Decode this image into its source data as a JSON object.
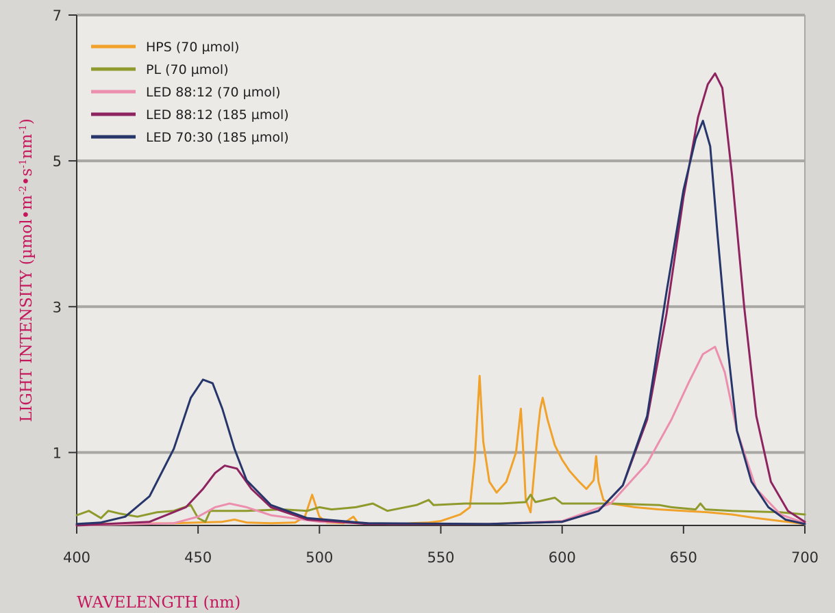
{
  "chart_data": {
    "type": "line",
    "xlabel": "WAVELENGTH (nm)",
    "ylabel_parts": [
      "LIGHT INTENSITY (µmol•m",
      "-2",
      "•s",
      "-1",
      "nm",
      "-1",
      ")"
    ],
    "xlim": [
      400,
      700
    ],
    "ylim": [
      0,
      7
    ],
    "xticks": [
      400,
      450,
      500,
      550,
      600,
      650,
      700
    ],
    "yticks": [
      1,
      3,
      5,
      7
    ],
    "grid": true,
    "legend_position": "top-left",
    "series": [
      {
        "name": "HPS (70 µmol)",
        "color": "#f0a22a",
        "points": [
          [
            400,
            0.02
          ],
          [
            440,
            0.03
          ],
          [
            460,
            0.05
          ],
          [
            465,
            0.08
          ],
          [
            470,
            0.04
          ],
          [
            480,
            0.03
          ],
          [
            490,
            0.04
          ],
          [
            494,
            0.12
          ],
          [
            497,
            0.42
          ],
          [
            500,
            0.12
          ],
          [
            503,
            0.04
          ],
          [
            510,
            0.03
          ],
          [
            514,
            0.12
          ],
          [
            516,
            0.03
          ],
          [
            530,
            0.02
          ],
          [
            545,
            0.04
          ],
          [
            550,
            0.06
          ],
          [
            558,
            0.15
          ],
          [
            562,
            0.25
          ],
          [
            564,
            0.9
          ],
          [
            566,
            2.05
          ],
          [
            567.5,
            1.15
          ],
          [
            570,
            0.6
          ],
          [
            573,
            0.45
          ],
          [
            577,
            0.6
          ],
          [
            581,
            1.0
          ],
          [
            583,
            1.6
          ],
          [
            584,
            1.0
          ],
          [
            585,
            0.35
          ],
          [
            587,
            0.18
          ],
          [
            588,
            0.55
          ],
          [
            590,
            1.3
          ],
          [
            591,
            1.6
          ],
          [
            592,
            1.75
          ],
          [
            594,
            1.45
          ],
          [
            597,
            1.1
          ],
          [
            600,
            0.9
          ],
          [
            603,
            0.75
          ],
          [
            607,
            0.6
          ],
          [
            610,
            0.5
          ],
          [
            613,
            0.62
          ],
          [
            614,
            0.95
          ],
          [
            615,
            0.6
          ],
          [
            617,
            0.35
          ],
          [
            620,
            0.3
          ],
          [
            630,
            0.25
          ],
          [
            640,
            0.22
          ],
          [
            650,
            0.2
          ],
          [
            660,
            0.18
          ],
          [
            670,
            0.15
          ],
          [
            680,
            0.1
          ],
          [
            690,
            0.06
          ],
          [
            700,
            0.02
          ]
        ]
      },
      {
        "name": "PL (70 µmol)",
        "color": "#8f9a2d",
        "points": [
          [
            400,
            0.14
          ],
          [
            405,
            0.2
          ],
          [
            410,
            0.1
          ],
          [
            413,
            0.2
          ],
          [
            418,
            0.16
          ],
          [
            425,
            0.12
          ],
          [
            433,
            0.18
          ],
          [
            440,
            0.2
          ],
          [
            447,
            0.28
          ],
          [
            450,
            0.1
          ],
          [
            453,
            0.05
          ],
          [
            455,
            0.2
          ],
          [
            470,
            0.2
          ],
          [
            485,
            0.22
          ],
          [
            495,
            0.2
          ],
          [
            500,
            0.25
          ],
          [
            505,
            0.22
          ],
          [
            515,
            0.25
          ],
          [
            522,
            0.3
          ],
          [
            528,
            0.2
          ],
          [
            540,
            0.28
          ],
          [
            545,
            0.35
          ],
          [
            547,
            0.28
          ],
          [
            560,
            0.3
          ],
          [
            575,
            0.3
          ],
          [
            585,
            0.32
          ],
          [
            587,
            0.42
          ],
          [
            589,
            0.32
          ],
          [
            597,
            0.38
          ],
          [
            600,
            0.3
          ],
          [
            620,
            0.3
          ],
          [
            640,
            0.28
          ],
          [
            645,
            0.25
          ],
          [
            655,
            0.22
          ],
          [
            657,
            0.3
          ],
          [
            659,
            0.22
          ],
          [
            670,
            0.2
          ],
          [
            690,
            0.18
          ],
          [
            700,
            0.15
          ]
        ]
      },
      {
        "name": "LED 88:12 (70 µmol)",
        "color": "#ec8fae",
        "points": [
          [
            400,
            0.0
          ],
          [
            440,
            0.03
          ],
          [
            450,
            0.12
          ],
          [
            457,
            0.25
          ],
          [
            463,
            0.3
          ],
          [
            470,
            0.25
          ],
          [
            480,
            0.14
          ],
          [
            500,
            0.05
          ],
          [
            530,
            0.02
          ],
          [
            570,
            0.02
          ],
          [
            600,
            0.06
          ],
          [
            620,
            0.3
          ],
          [
            635,
            0.85
          ],
          [
            645,
            1.45
          ],
          [
            652,
            1.95
          ],
          [
            658,
            2.35
          ],
          [
            663,
            2.45
          ],
          [
            667,
            2.1
          ],
          [
            672,
            1.3
          ],
          [
            680,
            0.5
          ],
          [
            690,
            0.15
          ],
          [
            700,
            0.03
          ]
        ]
      },
      {
        "name": "LED 88:12 (185 µmol)",
        "color": "#8d2460",
        "points": [
          [
            400,
            0.0
          ],
          [
            430,
            0.05
          ],
          [
            445,
            0.25
          ],
          [
            452,
            0.5
          ],
          [
            457,
            0.72
          ],
          [
            461,
            0.82
          ],
          [
            466,
            0.78
          ],
          [
            472,
            0.5
          ],
          [
            480,
            0.25
          ],
          [
            495,
            0.08
          ],
          [
            520,
            0.02
          ],
          [
            570,
            0.02
          ],
          [
            600,
            0.05
          ],
          [
            615,
            0.2
          ],
          [
            625,
            0.55
          ],
          [
            635,
            1.45
          ],
          [
            643,
            2.9
          ],
          [
            650,
            4.5
          ],
          [
            656,
            5.6
          ],
          [
            660,
            6.05
          ],
          [
            663,
            6.2
          ],
          [
            666,
            6.0
          ],
          [
            670,
            4.8
          ],
          [
            675,
            3.0
          ],
          [
            680,
            1.5
          ],
          [
            686,
            0.6
          ],
          [
            693,
            0.2
          ],
          [
            700,
            0.05
          ]
        ]
      },
      {
        "name": "LED 70:30 (185 µmol)",
        "color": "#27366a",
        "points": [
          [
            400,
            0.02
          ],
          [
            410,
            0.04
          ],
          [
            420,
            0.12
          ],
          [
            430,
            0.4
          ],
          [
            440,
            1.05
          ],
          [
            447,
            1.75
          ],
          [
            452,
            2.0
          ],
          [
            456,
            1.95
          ],
          [
            460,
            1.6
          ],
          [
            465,
            1.05
          ],
          [
            470,
            0.62
          ],
          [
            480,
            0.28
          ],
          [
            495,
            0.1
          ],
          [
            520,
            0.03
          ],
          [
            570,
            0.02
          ],
          [
            600,
            0.05
          ],
          [
            615,
            0.2
          ],
          [
            625,
            0.55
          ],
          [
            635,
            1.5
          ],
          [
            643,
            3.2
          ],
          [
            650,
            4.6
          ],
          [
            655,
            5.3
          ],
          [
            658,
            5.55
          ],
          [
            661,
            5.2
          ],
          [
            664,
            4.0
          ],
          [
            668,
            2.5
          ],
          [
            672,
            1.3
          ],
          [
            678,
            0.6
          ],
          [
            685,
            0.25
          ],
          [
            692,
            0.08
          ],
          [
            700,
            0.02
          ]
        ]
      }
    ]
  }
}
